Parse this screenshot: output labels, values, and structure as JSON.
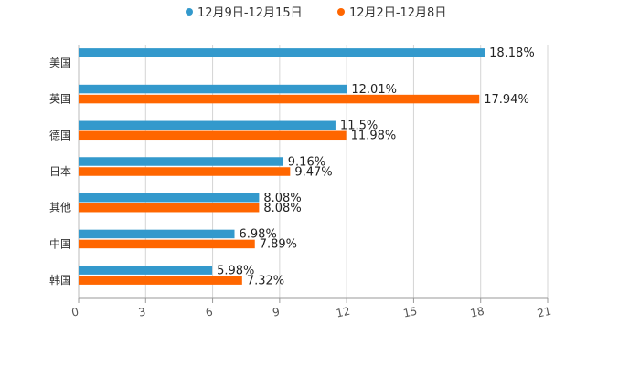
{
  "chart_data": {
    "type": "bar",
    "orientation": "horizontal",
    "title": "",
    "xlabel": "",
    "ylabel": "",
    "categories": [
      "美国",
      "英国",
      "德国",
      "日本",
      "其他",
      "中国",
      "韩国"
    ],
    "series": [
      {
        "name": "12月9日-12月15日",
        "color": "#3399cc",
        "values": [
          18.18,
          12.01,
          11.5,
          9.16,
          8.08,
          6.98,
          5.98
        ],
        "labels": [
          "18.18%",
          "12.01%",
          "11.5%",
          "9.16%",
          "8.08%",
          "6.98%",
          "5.98%"
        ]
      },
      {
        "name": "12月2日-12月8日",
        "color": "#ff6600",
        "values": [
          null,
          17.94,
          11.98,
          9.47,
          8.08,
          7.89,
          7.32
        ],
        "labels": [
          null,
          "17.94%",
          "11.98%",
          "9.47%",
          "8.08%",
          "7.89%",
          "7.32%"
        ]
      }
    ],
    "xlim": [
      0,
      21
    ],
    "xticks": [
      0,
      3,
      6,
      9,
      12,
      15,
      18,
      21
    ],
    "xtick_labels": [
      "0",
      "3",
      "6",
      "9",
      "12",
      "15",
      "18",
      "21"
    ],
    "grid": true,
    "legend_position": "top-center"
  }
}
